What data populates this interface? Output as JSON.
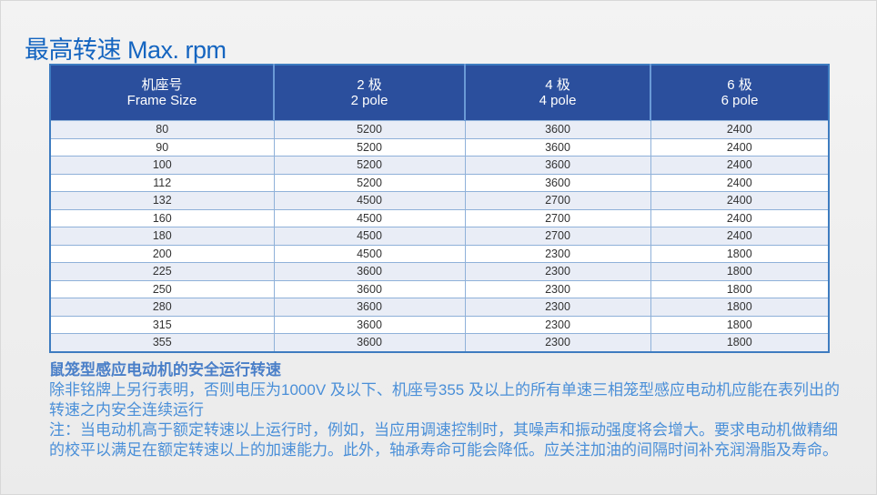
{
  "title": "最高转速  Max. rpm",
  "table": {
    "headers": [
      {
        "cn": "机座号",
        "en": "Frame Size"
      },
      {
        "cn": "2 极",
        "en": "2 pole"
      },
      {
        "cn": "4 极",
        "en": "4 pole"
      },
      {
        "cn": "6 极",
        "en": "6 pole"
      }
    ],
    "rows": [
      [
        "80",
        "5200",
        "3600",
        "2400"
      ],
      [
        "90",
        "5200",
        "3600",
        "2400"
      ],
      [
        "100",
        "5200",
        "3600",
        "2400"
      ],
      [
        "112",
        "5200",
        "3600",
        "2400"
      ],
      [
        "132",
        "4500",
        "2700",
        "2400"
      ],
      [
        "160",
        "4500",
        "2700",
        "2400"
      ],
      [
        "180",
        "4500",
        "2700",
        "2400"
      ],
      [
        "200",
        "4500",
        "2300",
        "1800"
      ],
      [
        "225",
        "3600",
        "2300",
        "1800"
      ],
      [
        "250",
        "3600",
        "2300",
        "1800"
      ],
      [
        "280",
        "3600",
        "2300",
        "1800"
      ],
      [
        "315",
        "3600",
        "2300",
        "1800"
      ],
      [
        "355",
        "3600",
        "2300",
        "1800"
      ]
    ]
  },
  "notes": {
    "heading": "鼠笼型感应电动机的安全运行转速",
    "p1": "除非铭牌上另行表明，否则电压为1000V 及以下、机座号355 及以上的所有单速三相笼型感应电动机应能在表列出的转速之内安全连续运行",
    "p2": "注：当电动机高于额定转速以上运行时，例如，当应用调速控制时，其噪声和振动强度将会增大。要求电动机做精细的校平以满足在额定转速以上的加速能力。此外，轴承寿命可能会降低。应关注加油的间隔时间补充润滑脂及寿命。"
  },
  "colors": {
    "title": "#1565c0",
    "header_bg": "#2b4f9d",
    "notes": "#4a8fd8"
  }
}
